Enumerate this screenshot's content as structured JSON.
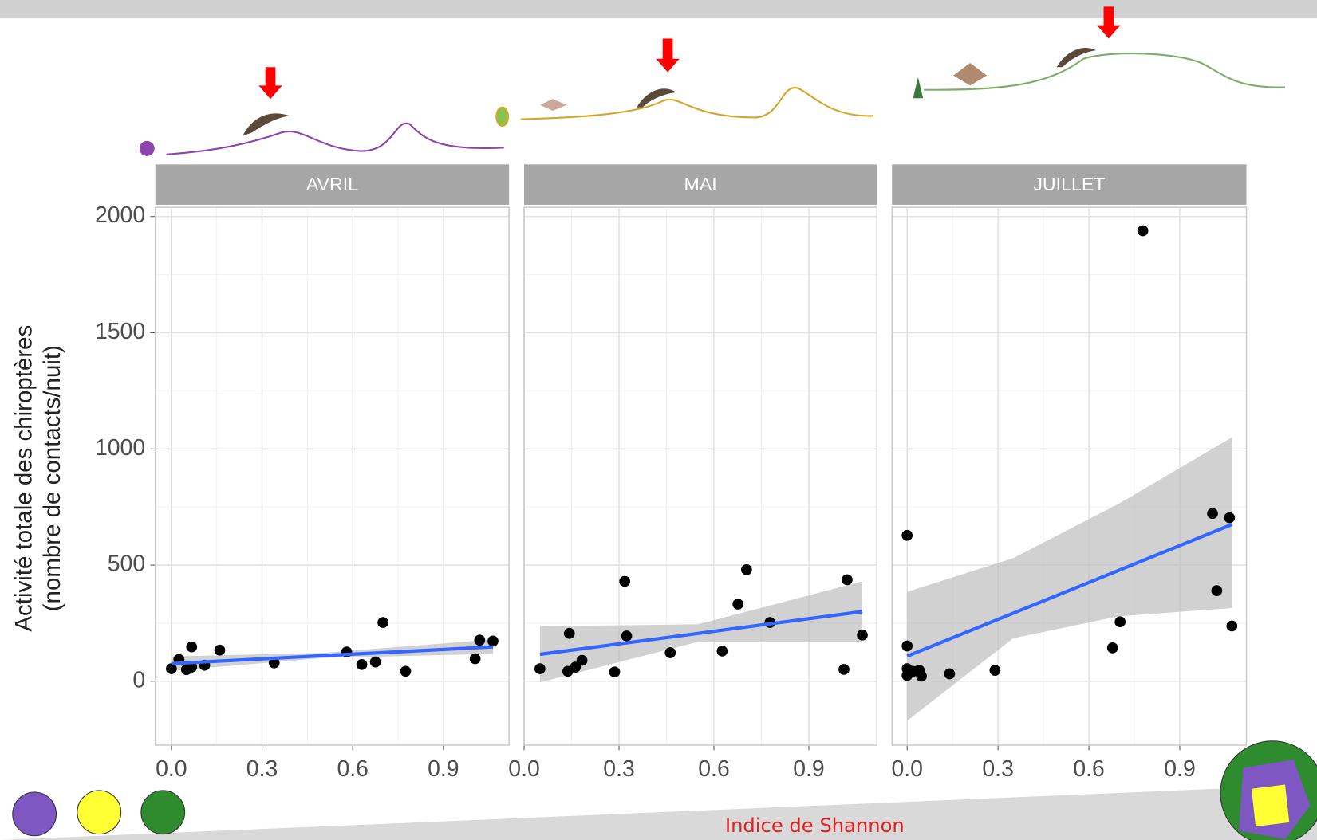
{
  "chart_data": [
    {
      "type": "scatter",
      "title": "AVRIL",
      "ylabel": [
        "Activité totale des chiroptères",
        "(nombre de contacts/nuit)"
      ],
      "x": [
        0,
        0.025,
        0.05,
        0.067,
        0.067,
        0.11,
        0.16,
        0.34,
        0.58,
        0.63,
        0.675,
        0.7,
        0.775,
        1.005,
        1.02,
        1.064
      ],
      "values": [
        54,
        94,
        50,
        148,
        61,
        69,
        134,
        79,
        126,
        72,
        83,
        253,
        43,
        97,
        177,
        173
      ],
      "color": "#000000",
      "fit": {
        "x": [
          0,
          0.5,
          1.064
        ],
        "values": [
          76,
          110,
          148
        ],
        "lower": [
          45,
          100,
          118
        ],
        "upper": [
          107,
          122,
          180
        ],
        "color": "#3366ff",
        "band_color": "#bdbdbd"
      },
      "xlim": [
        -0.053,
        1.117
      ],
      "xticks": [
        {
          "value": 0,
          "label": "0.0"
        },
        0.3,
        0.6,
        0.9
      ],
      "ylim": [
        -275,
        2040
      ],
      "yticks": [
        0,
        500,
        1000,
        1500,
        2000
      ],
      "grid": true
    },
    {
      "type": "scatter",
      "title": "MAI",
      "xlabel": "Indice de Shannon",
      "x": [
        0.05,
        0.138,
        0.143,
        0.162,
        0.183,
        0.286,
        0.318,
        0.324,
        0.462,
        0.626,
        0.676,
        0.703,
        0.777,
        1.011,
        1.021,
        1.069
      ],
      "values": [
        54,
        43,
        206,
        61,
        90,
        40,
        430,
        195,
        123,
        130,
        332,
        480,
        253,
        51,
        437,
        199
      ],
      "color": "#000000",
      "fit": {
        "x": [
          0.05,
          0.55,
          1.069
        ],
        "values": [
          116,
          206,
          300
        ],
        "lower": [
          -5,
          170,
          170
        ],
        "upper": [
          237,
          245,
          430
        ],
        "color": "#3366ff",
        "band_color": "#bdbdbd"
      },
      "xlim": [
        0,
        1.115
      ],
      "xticks": [
        {
          "value": 0,
          "label": "0.0"
        },
        0.3,
        0.6,
        0.9
      ],
      "ylim": [
        -275,
        2040
      ],
      "yticks": [
        0,
        500,
        1000,
        1500,
        2000
      ],
      "grid": true
    },
    {
      "type": "scatter",
      "title": "JUILLET",
      "x": [
        0,
        0,
        0,
        0,
        0.02,
        0.04,
        0.047,
        0.14,
        0.29,
        0.678,
        0.703,
        0.778,
        1.008,
        1.022,
        1.064,
        1.072
      ],
      "values": [
        628,
        152,
        54,
        25,
        43,
        47,
        22,
        32,
        47,
        144,
        256,
        1939,
        722,
        390,
        704,
        238
      ],
      "color": "#000000",
      "fit": {
        "x": [
          0,
          0.35,
          0.7,
          1.072
        ],
        "values": [
          108,
          293,
          478,
          675
        ],
        "lower": [
          -170,
          185,
          280,
          315
        ],
        "upper": [
          385,
          530,
          765,
          1050
        ],
        "color": "#3366ff",
        "band_color": "#bdbdbd"
      },
      "xlim": [
        -0.05,
        1.12
      ],
      "xticks": [
        {
          "value": 0,
          "label": "0.0"
        },
        0.3,
        0.6,
        0.9
      ],
      "ylim": [
        -275,
        2040
      ],
      "yticks": [
        0,
        500,
        1000,
        1500,
        2000
      ],
      "grid": true
    }
  ]
}
